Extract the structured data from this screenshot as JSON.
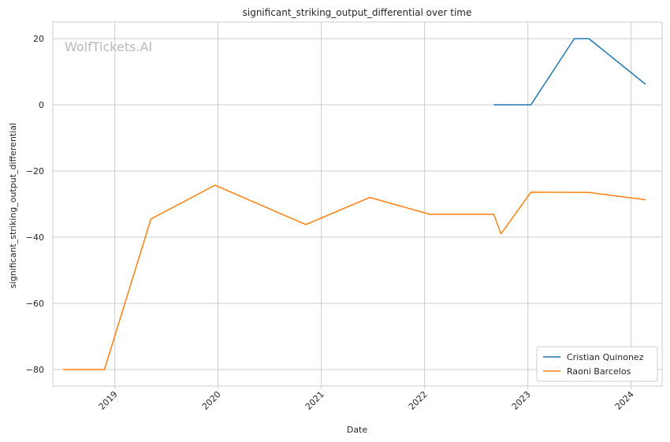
{
  "chart_data": {
    "type": "line",
    "title": "significant_striking_output_differential over time",
    "xlabel": "Date",
    "ylabel": "significant_striking_output_differential",
    "watermark": "WolfTickets.AI",
    "xlim": [
      2018.4,
      2024.3
    ],
    "ylim": [
      -85,
      25
    ],
    "xticks": [
      {
        "value": 2019,
        "label": "2019"
      },
      {
        "value": 2020,
        "label": "2020"
      },
      {
        "value": 2021,
        "label": "2021"
      },
      {
        "value": 2022,
        "label": "2022"
      },
      {
        "value": 2023,
        "label": "2023"
      },
      {
        "value": 2024,
        "label": "2024"
      }
    ],
    "yticks": [
      {
        "value": 20,
        "label": "20"
      },
      {
        "value": 0,
        "label": "0"
      },
      {
        "value": -20,
        "label": "−20"
      },
      {
        "value": -40,
        "label": "−40"
      },
      {
        "value": -60,
        "label": "−60"
      },
      {
        "value": -80,
        "label": "−80"
      }
    ],
    "grid": true,
    "legend_position": "bottom-right",
    "series": [
      {
        "name": "Cristian Quinonez",
        "color": "#1f77b4",
        "x": [
          2022.67,
          2023.03,
          2023.45,
          2023.59,
          2024.14
        ],
        "y": [
          0,
          0,
          20,
          20,
          6.2
        ]
      },
      {
        "name": "Raoni Barcelos",
        "color": "#ff7f0e",
        "x": [
          2018.5,
          2018.9,
          2019.35,
          2019.97,
          2020.85,
          2021.47,
          2022.05,
          2022.67,
          2022.74,
          2023.03,
          2023.59,
          2024.14
        ],
        "y": [
          -80,
          -80,
          -34.5,
          -24.3,
          -36.2,
          -28,
          -33.1,
          -33.1,
          -39,
          -26.4,
          -26.5,
          -28.7
        ]
      }
    ]
  }
}
